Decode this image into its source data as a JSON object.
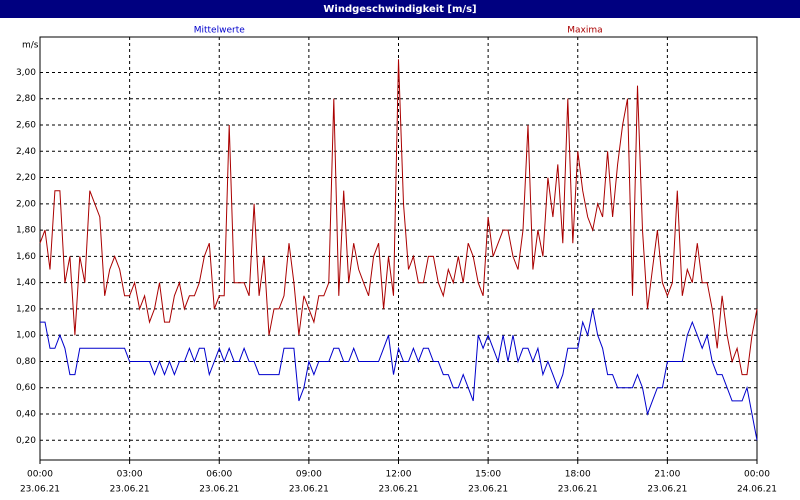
{
  "chart_data": {
    "type": "line",
    "window_title": "Windgeschwindigkeit [m/s]",
    "y_unit": "m/s",
    "x": [
      0,
      10,
      20,
      30,
      40,
      50,
      60,
      70,
      80,
      90,
      100,
      110,
      120,
      130,
      140,
      150,
      160,
      170,
      180,
      190,
      200,
      210,
      220,
      230,
      240,
      250,
      260,
      270,
      280,
      290,
      300,
      310,
      320,
      330,
      340,
      350,
      360,
      370,
      380,
      390,
      400,
      410,
      420,
      430,
      440,
      450,
      460,
      470,
      480,
      490,
      500,
      510,
      520,
      530,
      540,
      550,
      560,
      570,
      580,
      590,
      600,
      610,
      620,
      630,
      640,
      650,
      660,
      670,
      680,
      690,
      700,
      710,
      720,
      730,
      740,
      750,
      760,
      770,
      780,
      790,
      800,
      810,
      820,
      830,
      840,
      850,
      860,
      870,
      880,
      890,
      900,
      910,
      920,
      930,
      940,
      950,
      960,
      970,
      980,
      990,
      1000,
      1010,
      1020,
      1030,
      1040,
      1050,
      1060,
      1070,
      1080,
      1090,
      1100,
      1110,
      1120,
      1130,
      1140,
      1150,
      1160,
      1170,
      1180,
      1190,
      1200,
      1210,
      1220,
      1230,
      1240,
      1250,
      1260,
      1270,
      1280,
      1290,
      1300,
      1310,
      1320,
      1330,
      1340,
      1350,
      1360,
      1370,
      1380,
      1390,
      1400,
      1410,
      1420,
      1430,
      1440
    ],
    "series": [
      {
        "name": "Mittelwerte",
        "color": "#0000cc",
        "values": [
          1.1,
          1.1,
          0.9,
          0.9,
          1.0,
          0.9,
          0.7,
          0.7,
          0.9,
          0.9,
          0.9,
          0.9,
          0.9,
          0.9,
          0.9,
          0.9,
          0.9,
          0.9,
          0.8,
          0.8,
          0.8,
          0.8,
          0.8,
          0.7,
          0.8,
          0.7,
          0.8,
          0.7,
          0.8,
          0.8,
          0.9,
          0.8,
          0.9,
          0.9,
          0.7,
          0.8,
          0.9,
          0.8,
          0.9,
          0.8,
          0.8,
          0.9,
          0.8,
          0.8,
          0.7,
          0.7,
          0.7,
          0.7,
          0.7,
          0.9,
          0.9,
          0.9,
          0.5,
          0.6,
          0.8,
          0.7,
          0.8,
          0.8,
          0.8,
          0.9,
          0.9,
          0.8,
          0.8,
          0.9,
          0.8,
          0.8,
          0.8,
          0.8,
          0.8,
          0.9,
          1.0,
          0.7,
          0.9,
          0.8,
          0.8,
          0.9,
          0.8,
          0.9,
          0.9,
          0.8,
          0.8,
          0.7,
          0.7,
          0.6,
          0.6,
          0.7,
          0.6,
          0.5,
          1.0,
          0.9,
          1.0,
          0.9,
          0.8,
          1.0,
          0.8,
          1.0,
          0.8,
          0.9,
          0.9,
          0.8,
          0.9,
          0.7,
          0.8,
          0.7,
          0.6,
          0.7,
          0.9,
          0.9,
          0.9,
          1.1,
          1.0,
          1.2,
          1.0,
          0.9,
          0.7,
          0.7,
          0.6,
          0.6,
          0.6,
          0.6,
          0.7,
          0.6,
          0.4,
          0.5,
          0.6,
          0.6,
          0.8,
          0.8,
          0.8,
          0.8,
          1.0,
          1.1,
          1.0,
          0.9,
          1.0,
          0.8,
          0.7,
          0.7,
          0.6,
          0.5,
          0.5,
          0.5,
          0.6,
          0.4,
          0.2
        ]
      },
      {
        "name": "Maxima",
        "color": "#aa0000",
        "values": [
          1.7,
          1.8,
          1.5,
          2.1,
          2.1,
          1.4,
          1.6,
          1.0,
          1.6,
          1.4,
          2.1,
          2.0,
          1.9,
          1.3,
          1.5,
          1.6,
          1.5,
          1.3,
          1.3,
          1.4,
          1.2,
          1.3,
          1.1,
          1.2,
          1.4,
          1.1,
          1.1,
          1.3,
          1.4,
          1.2,
          1.3,
          1.3,
          1.4,
          1.6,
          1.7,
          1.2,
          1.3,
          1.3,
          2.6,
          1.4,
          1.4,
          1.4,
          1.3,
          2.0,
          1.3,
          1.6,
          1.0,
          1.2,
          1.2,
          1.3,
          1.7,
          1.4,
          1.0,
          1.3,
          1.2,
          1.1,
          1.3,
          1.3,
          1.4,
          2.8,
          1.3,
          2.1,
          1.4,
          1.7,
          1.5,
          1.4,
          1.3,
          1.6,
          1.7,
          1.2,
          1.6,
          1.3,
          3.1,
          2.0,
          1.5,
          1.6,
          1.4,
          1.4,
          1.6,
          1.6,
          1.4,
          1.3,
          1.5,
          1.4,
          1.6,
          1.4,
          1.7,
          1.6,
          1.4,
          1.3,
          1.9,
          1.6,
          1.7,
          1.8,
          1.8,
          1.6,
          1.5,
          1.8,
          2.6,
          1.5,
          1.8,
          1.6,
          2.2,
          1.9,
          2.3,
          1.7,
          2.8,
          1.7,
          2.4,
          2.1,
          1.9,
          1.8,
          2.0,
          1.9,
          2.4,
          1.9,
          2.3,
          2.6,
          2.8,
          1.3,
          2.9,
          1.8,
          1.2,
          1.5,
          1.8,
          1.4,
          1.3,
          1.4,
          2.1,
          1.3,
          1.5,
          1.4,
          1.7,
          1.4,
          1.4,
          1.2,
          0.9,
          1.3,
          1.0,
          0.8,
          0.9,
          0.7,
          0.7,
          1.0,
          1.2
        ]
      }
    ],
    "xlim": [
      0,
      1440
    ],
    "xticks": [
      {
        "value": 0,
        "label": "00:00"
      },
      {
        "value": 180,
        "label": "03:00"
      },
      {
        "value": 360,
        "label": "06:00"
      },
      {
        "value": 540,
        "label": "09:00"
      },
      {
        "value": 720,
        "label": "12:00"
      },
      {
        "value": 900,
        "label": "15:00"
      },
      {
        "value": 1080,
        "label": "18:00"
      },
      {
        "value": 1260,
        "label": "21:00"
      },
      {
        "value": 1440,
        "label": "00:00"
      }
    ],
    "xtick_dates": [
      "23.06.21",
      "23.06.21",
      "23.06.21",
      "23.06.21",
      "23.06.21",
      "23.06.21",
      "23.06.21",
      "23.06.21",
      "24.06.21"
    ],
    "ylim": [
      0.05,
      3.27
    ],
    "yticks": [
      {
        "value": 0.2,
        "label": "0,20"
      },
      {
        "value": 0.4,
        "label": "0,40"
      },
      {
        "value": 0.6,
        "label": "0,60"
      },
      {
        "value": 0.8,
        "label": "0,80"
      },
      {
        "value": 1.0,
        "label": "1,00"
      },
      {
        "value": 1.2,
        "label": "1,20"
      },
      {
        "value": 1.4,
        "label": "1,40"
      },
      {
        "value": 1.6,
        "label": "1,60"
      },
      {
        "value": 1.8,
        "label": "1,80"
      },
      {
        "value": 2.0,
        "label": "2,00"
      },
      {
        "value": 2.2,
        "label": "2,20"
      },
      {
        "value": 2.4,
        "label": "2,40"
      },
      {
        "value": 2.6,
        "label": "2,60"
      },
      {
        "value": 2.8,
        "label": "2,80"
      },
      {
        "value": 3.0,
        "label": "3,00"
      }
    ],
    "grid": true
  }
}
